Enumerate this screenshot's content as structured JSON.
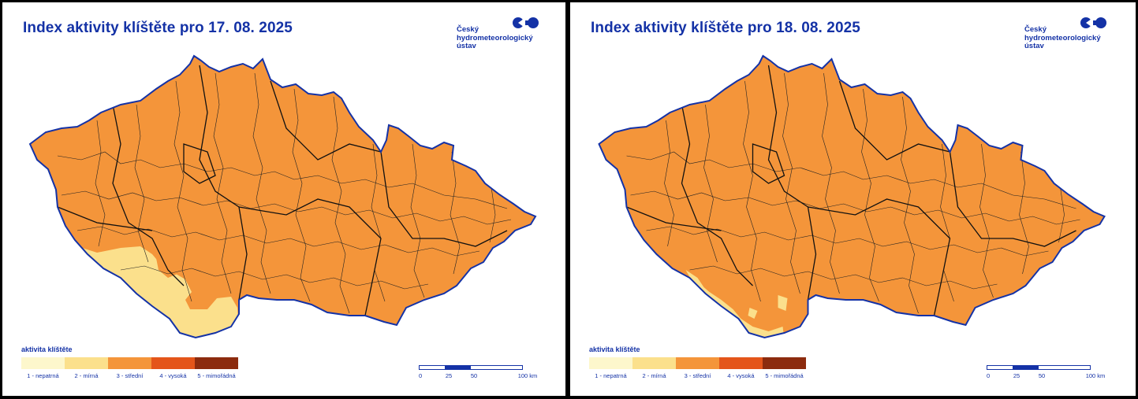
{
  "maps": [
    {
      "title": "Index aktivity klíštěte pro 17. 08. 2025",
      "low_zones": "yes"
    },
    {
      "title": "Index aktivity klíštěte pro 18. 08. 2025",
      "low_zones": "small"
    }
  ],
  "logo": {
    "line1": "Český",
    "line2": "hydrometeorologický",
    "line3": "ústav"
  },
  "legend": {
    "title": "aktivita klíštěte",
    "items": [
      {
        "label": "1 - nepatrná",
        "color": "#fdf7cc"
      },
      {
        "label": "2 - mírná",
        "color": "#fbe08c"
      },
      {
        "label": "3 - střední",
        "color": "#f4953a"
      },
      {
        "label": "4 - vysoká",
        "color": "#e4551a"
      },
      {
        "label": "5 - mimořádná",
        "color": "#8c2b0e"
      }
    ]
  },
  "scale": {
    "ticks": [
      "0",
      "25",
      "50",
      "100 km"
    ]
  },
  "colors": {
    "accent": "#1432a6",
    "map_fill": "#f4953a",
    "low_fill": "#fbe08c",
    "border": "#1432a6"
  }
}
